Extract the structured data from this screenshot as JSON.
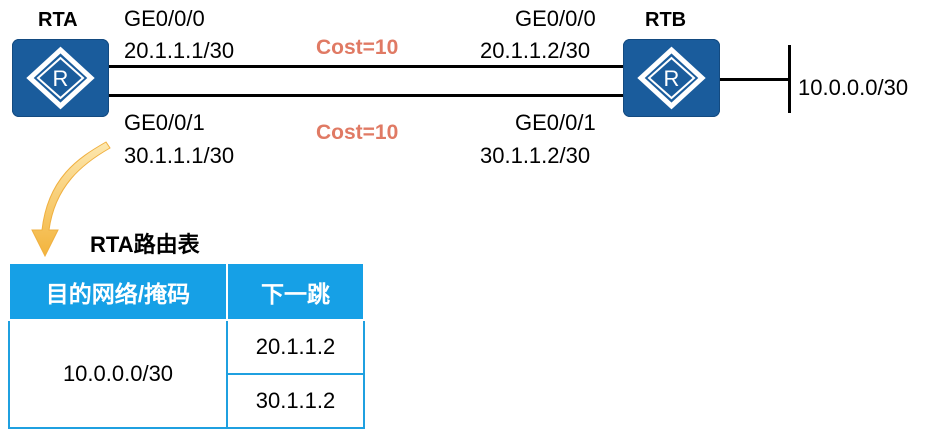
{
  "routers": {
    "rta": {
      "name": "RTA"
    },
    "rtb": {
      "name": "RTB"
    }
  },
  "links": [
    {
      "cost": "Cost=10",
      "a_if": "GE0/0/0",
      "a_ip": "20.1.1.1/30",
      "b_if": "GE0/0/0",
      "b_ip": "20.1.1.2/30"
    },
    {
      "cost": "Cost=10",
      "a_if": "GE0/0/1",
      "a_ip": "30.1.1.1/30",
      "b_if": "GE0/0/1",
      "b_ip": "30.1.1.2/30"
    }
  ],
  "network": "10.0.0.0/30",
  "routing_table": {
    "title": "RTA路由表",
    "headers": [
      "目的网络/掩码",
      "下一跳"
    ],
    "destination": "10.0.0.0/30",
    "next_hops": [
      "20.1.1.2",
      "30.1.1.2"
    ]
  },
  "colors": {
    "router": "#1a5c9c",
    "table_header": "#16a0e6",
    "cost": "#e07a64",
    "arrow": "#f5c04a"
  }
}
